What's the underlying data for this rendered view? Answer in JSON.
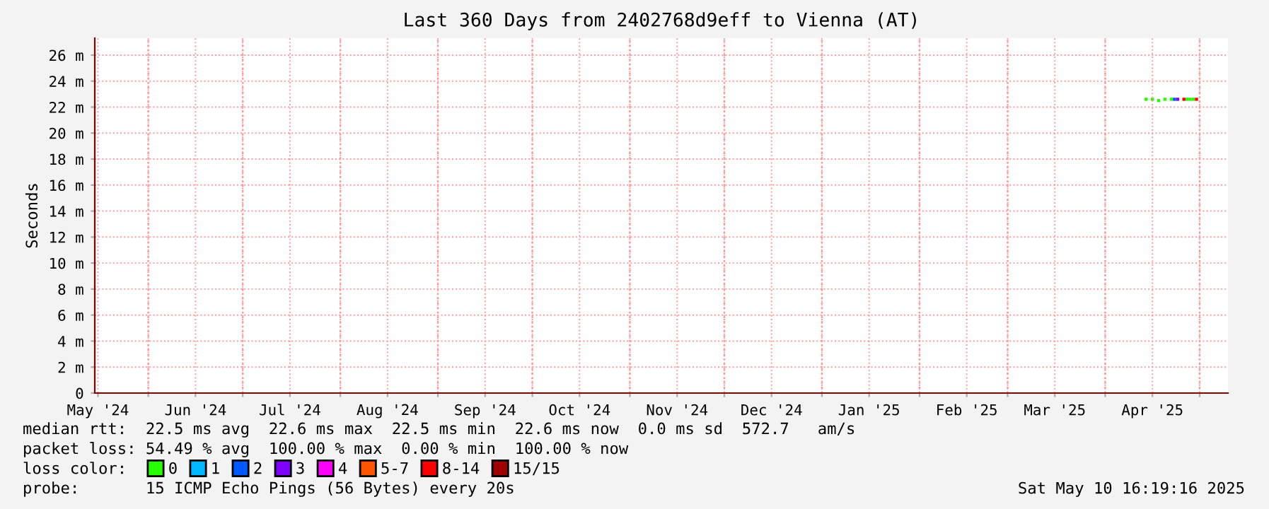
{
  "chart_data": {
    "type": "scatter",
    "title": "Last 360 Days from 2402768d9eff to Vienna (AT)",
    "ylabel": "Seconds",
    "x": [
      "2025-04-14",
      "2025-04-16",
      "2025-04-18",
      "2025-04-20",
      "2025-04-22",
      "2025-04-23",
      "2025-04-24",
      "2025-04-26",
      "2025-04-27",
      "2025-04-28",
      "2025-04-29",
      "2025-04-30"
    ],
    "series": [
      {
        "name": "0",
        "color": "#26ff00",
        "values": [
          22.6,
          22.6,
          22.5,
          22.6,
          22.6,
          null,
          null,
          null,
          22.6,
          22.6,
          22.6,
          null
        ]
      },
      {
        "name": "1",
        "color": "#00b8ff",
        "values": [
          null,
          null,
          null,
          null,
          null,
          null,
          null,
          null,
          null,
          null,
          null,
          null
        ]
      },
      {
        "name": "2",
        "color": "#0059ff",
        "values": [
          null,
          null,
          null,
          null,
          null,
          22.6,
          null,
          null,
          null,
          null,
          null,
          null
        ]
      },
      {
        "name": "3",
        "color": "#7e00ff",
        "values": [
          null,
          null,
          null,
          null,
          null,
          null,
          22.6,
          null,
          null,
          null,
          null,
          null
        ]
      },
      {
        "name": "4",
        "color": "#ff00ff",
        "values": [
          null,
          null,
          null,
          null,
          null,
          null,
          null,
          null,
          null,
          null,
          null,
          null
        ]
      },
      {
        "name": "5-7",
        "color": "#ff5500",
        "values": [
          null,
          null,
          null,
          null,
          null,
          null,
          null,
          null,
          null,
          null,
          null,
          null
        ]
      },
      {
        "name": "8-14",
        "color": "#ff0000",
        "values": [
          null,
          null,
          null,
          null,
          null,
          null,
          null,
          22.6,
          null,
          null,
          null,
          22.6
        ]
      },
      {
        "name": "15/15",
        "color": "#a10000",
        "values": [
          null,
          null,
          null,
          null,
          null,
          null,
          null,
          null,
          null,
          null,
          null,
          null
        ]
      }
    ],
    "marker": "square",
    "grid": true,
    "legend": "bottom",
    "legend_title": "loss color:",
    "xlim": [
      "2024-05-15",
      "2025-05-10"
    ],
    "xticks": [
      {
        "value": "2024-05-16",
        "label": "May '24"
      },
      {
        "value": "2024-06-01",
        "label": null
      },
      {
        "value": "2024-06-16",
        "label": "Jun '24"
      },
      {
        "value": "2024-07-01",
        "label": null
      },
      {
        "value": "2024-07-16",
        "label": "Jul '24"
      },
      {
        "value": "2024-08-01",
        "label": null
      },
      {
        "value": "2024-08-16",
        "label": "Aug '24"
      },
      {
        "value": "2024-09-01",
        "label": null
      },
      {
        "value": "2024-09-16",
        "label": "Sep '24"
      },
      {
        "value": "2024-10-01",
        "label": null
      },
      {
        "value": "2024-10-16",
        "label": "Oct '24"
      },
      {
        "value": "2024-11-01",
        "label": null
      },
      {
        "value": "2024-11-16",
        "label": "Nov '24"
      },
      {
        "value": "2024-12-01",
        "label": null
      },
      {
        "value": "2024-12-16",
        "label": "Dec '24"
      },
      {
        "value": "2025-01-01",
        "label": null
      },
      {
        "value": "2025-01-16",
        "label": "Jan '25"
      },
      {
        "value": "2025-02-01",
        "label": null
      },
      {
        "value": "2025-02-16",
        "label": "Feb '25"
      },
      {
        "value": "2025-03-01",
        "label": null
      },
      {
        "value": "2025-03-16",
        "label": "Mar '25"
      },
      {
        "value": "2025-04-01",
        "label": null
      },
      {
        "value": "2025-04-16",
        "label": "Apr '25"
      },
      {
        "value": "2025-05-01",
        "label": null
      }
    ],
    "ylim": [
      0,
      27.3
    ],
    "yticks": [
      0,
      {
        "value": 2,
        "label": "2 m"
      },
      {
        "value": 4,
        "label": "4 m"
      },
      {
        "value": 6,
        "label": "6 m"
      },
      {
        "value": 8,
        "label": "8 m"
      },
      {
        "value": 10,
        "label": "10 m"
      },
      {
        "value": 12,
        "label": "12 m"
      },
      {
        "value": 14,
        "label": "14 m"
      },
      {
        "value": 16,
        "label": "16 m"
      },
      {
        "value": 18,
        "label": "18 m"
      },
      {
        "value": 20,
        "label": "20 m"
      },
      {
        "value": 22,
        "label": "22 m"
      },
      {
        "value": 24,
        "label": "24 m"
      },
      {
        "value": 26,
        "label": "26 m"
      }
    ],
    "annotations": [
      "median rtt:  22.5 ms avg  22.6 ms max  22.5 ms min  22.6 ms now  0.0 ms sd  572.7   am/s",
      "packet loss: 54.49 % avg  100.00 % max  0.00 % min  100.00 % now",
      "probe:       15 ICMP Echo Pings (56 Bytes) every 20s",
      "Sat May 10 16:19:16 2025"
    ]
  }
}
